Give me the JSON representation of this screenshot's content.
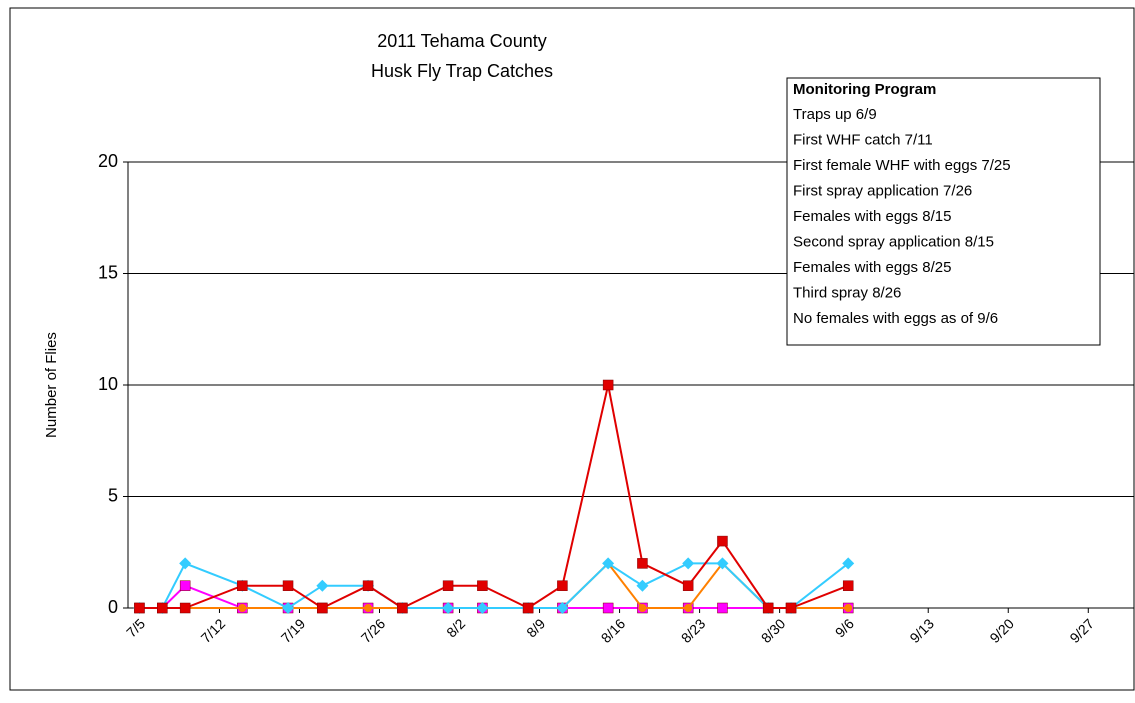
{
  "chart_data": {
    "type": "line",
    "title": [
      "2011 Tehama County",
      "Husk Fly Trap Catches"
    ],
    "y_label": "Number of Flies",
    "x": [
      "7/5",
      "7/7",
      "7/9",
      "7/14",
      "7/18",
      "7/21",
      "7/25",
      "7/28",
      "8/1",
      "8/4",
      "8/8",
      "8/11",
      "8/15",
      "8/18",
      "8/22",
      "8/25",
      "8/29",
      "9/1",
      "9/6"
    ],
    "xlim": [
      "7/4",
      "10/1"
    ],
    "xticks": [
      "7/5",
      "7/12",
      "7/19",
      "7/26",
      "8/2",
      "8/9",
      "8/16",
      "8/23",
      "8/30",
      "9/6",
      "9/13",
      "9/20",
      "9/27"
    ],
    "ylim": [
      0,
      20
    ],
    "yticks": [
      0,
      5,
      10,
      15,
      20
    ],
    "grid": true,
    "series": [
      {
        "color": "#ff00ff",
        "marker": "square",
        "values": [
          0,
          0,
          1,
          0,
          0,
          0,
          0,
          0,
          0,
          0,
          0,
          0,
          0,
          0,
          0,
          0,
          0,
          0,
          0
        ]
      },
      {
        "color": "#ff8000",
        "marker": "circle",
        "values": [
          0,
          0,
          0,
          0,
          0,
          0,
          0,
          0,
          0,
          0,
          0,
          0,
          2,
          0,
          0,
          2,
          0,
          0,
          0
        ]
      },
      {
        "color": "#33ccff",
        "marker": "diamond",
        "values": [
          0,
          0,
          2,
          1,
          0,
          1,
          1,
          0,
          0,
          0,
          0,
          0,
          2,
          1,
          2,
          2,
          0,
          0,
          2
        ]
      },
      {
        "color": "#e00000",
        "marker": "square",
        "values": [
          0,
          0,
          0,
          1,
          1,
          0,
          1,
          0,
          1,
          1,
          0,
          1,
          10,
          2,
          1,
          3,
          0,
          0,
          1
        ]
      }
    ],
    "annotation": {
      "title": "Monitoring Program",
      "lines": [
        "Traps up 6/9",
        "First WHF catch 7/11",
        "First female WHF with eggs 7/25",
        "First spray application 7/26",
        "Females with eggs 8/15",
        "Second spray application 8/15",
        "Females with eggs 8/25",
        "Third spray 8/26",
        "No females with eggs as of 9/6"
      ]
    }
  }
}
